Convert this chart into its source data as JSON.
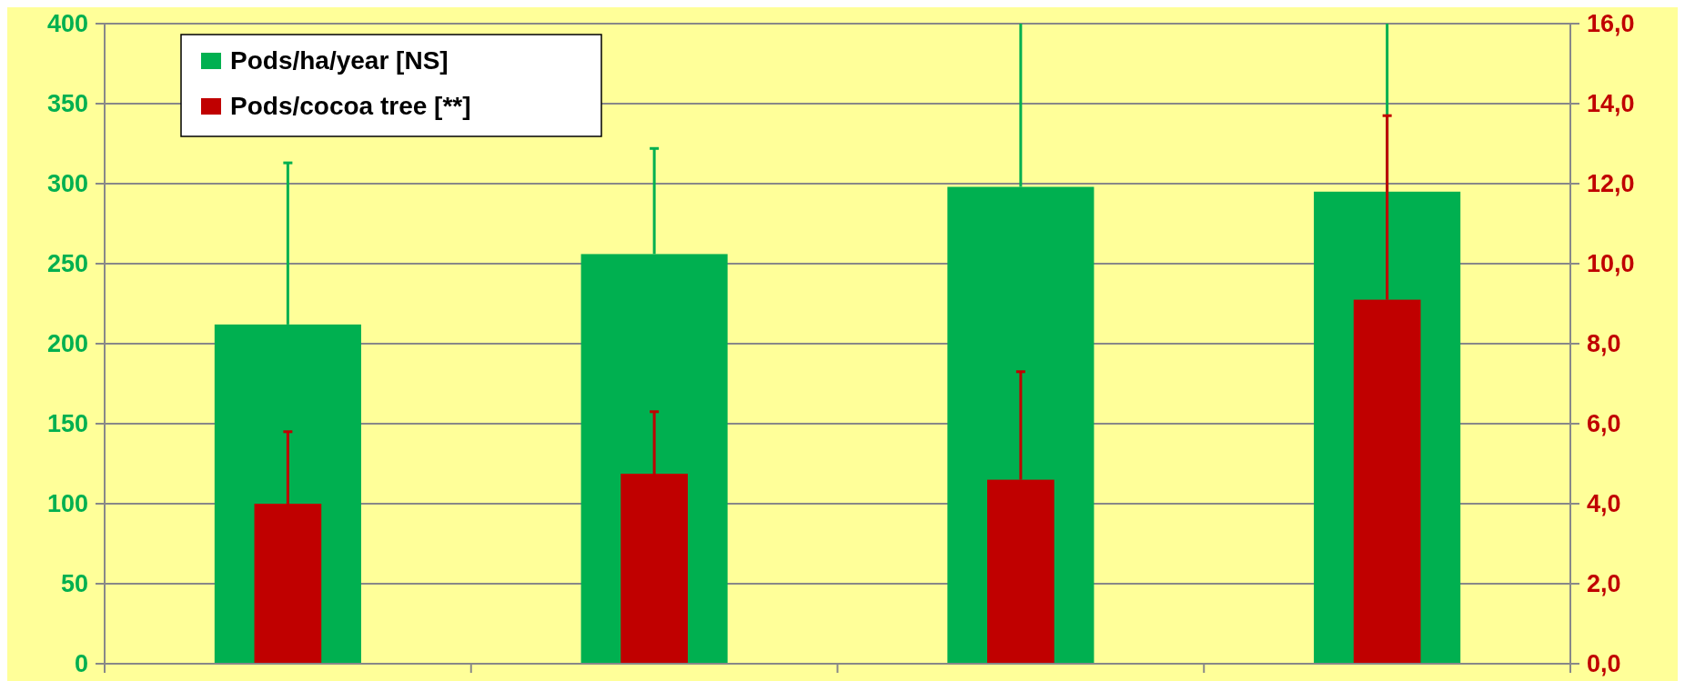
{
  "chart_data": {
    "type": "bar",
    "categories": [
      null,
      null,
      null,
      null
    ],
    "series": [
      {
        "name": "Pods/ha/year [NS]",
        "color": "#00b050",
        "values": [
          212,
          256,
          298,
          295
        ],
        "errors": [
          [
            212,
            313
          ],
          [
            256,
            322
          ],
          [
            298,
            400
          ],
          [
            295,
            400
          ]
        ]
      },
      {
        "name": "Pods/cocoa tree [**]",
        "color": "#c00000",
        "axis": "y2",
        "values": [
          4.0,
          4.75,
          4.6,
          9.1
        ],
        "errors": [
          [
            4.0,
            5.8
          ],
          [
            4.75,
            6.3
          ],
          [
            4.6,
            7.3
          ],
          [
            9.1,
            13.7
          ]
        ]
      }
    ],
    "ylim": [
      0,
      400
    ],
    "yticks": [
      0,
      50,
      100,
      150,
      200,
      250,
      300,
      350,
      400
    ],
    "y2lim": [
      0,
      16
    ],
    "y2ticks": [
      {
        "value": 0,
        "label": "0,0"
      },
      {
        "value": 2,
        "label": "2,0"
      },
      {
        "value": 4,
        "label": "4,0"
      },
      {
        "value": 6,
        "label": "6,0"
      },
      {
        "value": 8,
        "label": "8,0"
      },
      {
        "value": 10,
        "label": "10,0"
      },
      {
        "value": 12,
        "label": "12,0"
      },
      {
        "value": 14,
        "label": "14,0"
      },
      {
        "value": 16,
        "label": "16,0"
      }
    ],
    "grid": "y",
    "legend": "top left"
  }
}
